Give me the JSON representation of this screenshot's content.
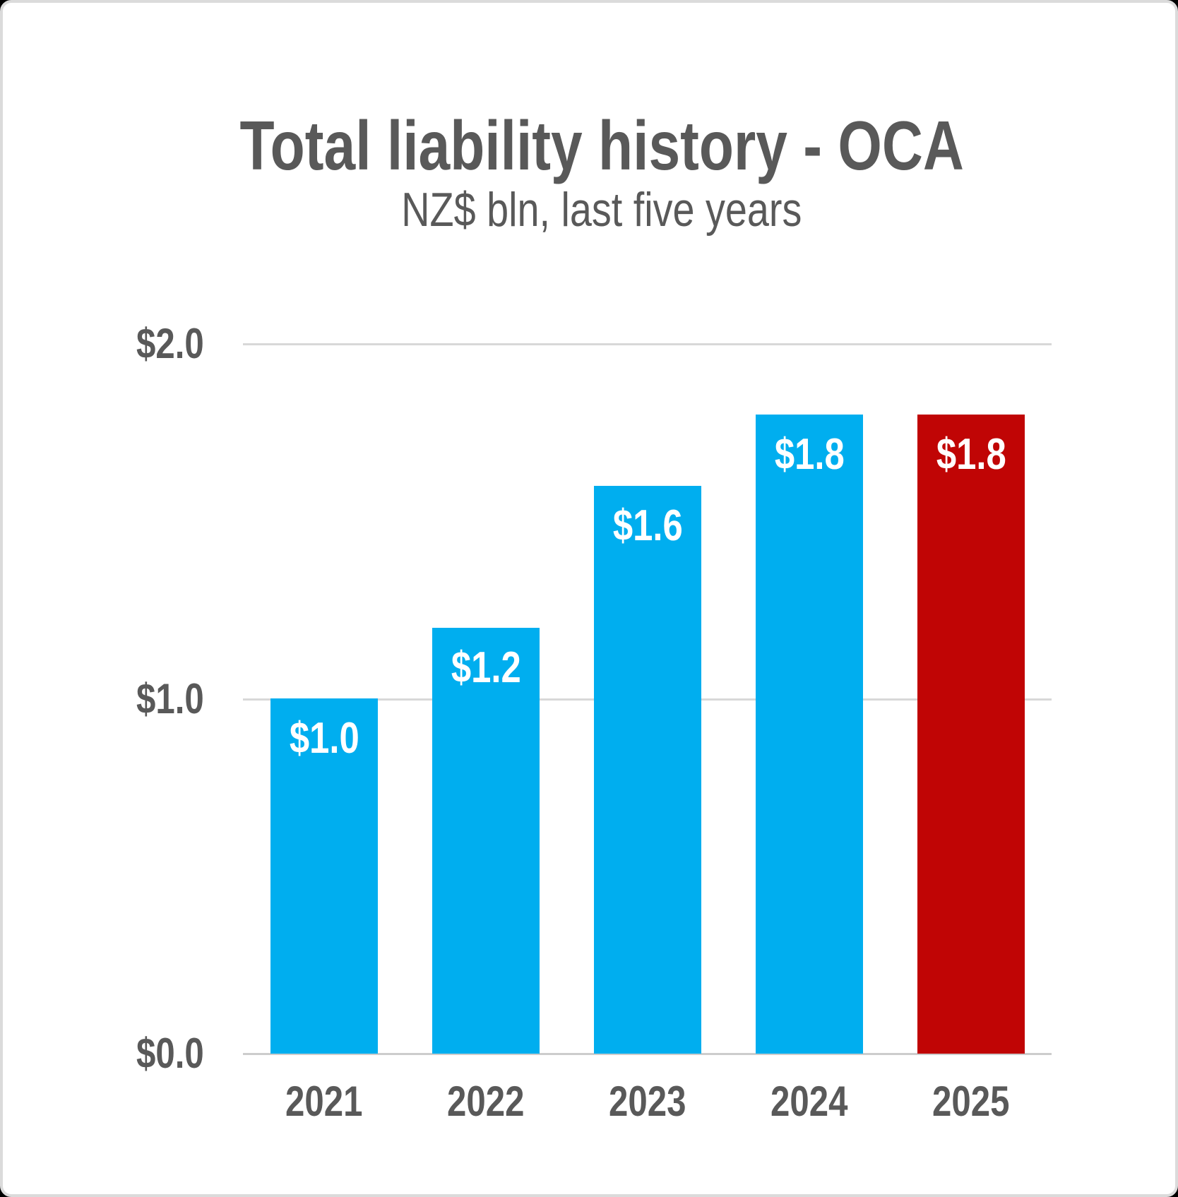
{
  "chart": {
    "title": "Total liability history - OCA",
    "subtitle": "NZ$ bln, last five years"
  },
  "chart_data": {
    "type": "bar",
    "title": "Total liability history - OCA",
    "subtitle": "NZ$ bln, last five years",
    "unit": "NZ$ bln",
    "xlabel": "",
    "ylabel": "NZ$ bln",
    "categories": [
      "2021",
      "2022",
      "2023",
      "2024",
      "2025"
    ],
    "values": [
      1.0,
      1.2,
      1.6,
      1.8,
      1.8
    ],
    "bar_labels": [
      "$1.0",
      "$1.2",
      "$1.6",
      "$1.8",
      "$1.8"
    ],
    "y_ticks": [
      {
        "value": 0.0,
        "label": "$0.0"
      },
      {
        "value": 1.0,
        "label": "$1.0"
      },
      {
        "value": 2.0,
        "label": "$2.0"
      }
    ],
    "ylim": [
      0,
      2.0
    ],
    "grid": true,
    "legend": false,
    "highlight_index": 4,
    "colors": {
      "default_bar": "#00AEEF",
      "highlight_bar": "#C00505",
      "bar_label_text": "#FFFFFF",
      "axis_text": "#595959",
      "title_text": "#595959",
      "gridline": "#D8D8D8",
      "baseline": "#CDCDCD",
      "card_background": "#FFFFFF",
      "card_border": "#DBDBDB",
      "outer_background": "#000000"
    }
  }
}
